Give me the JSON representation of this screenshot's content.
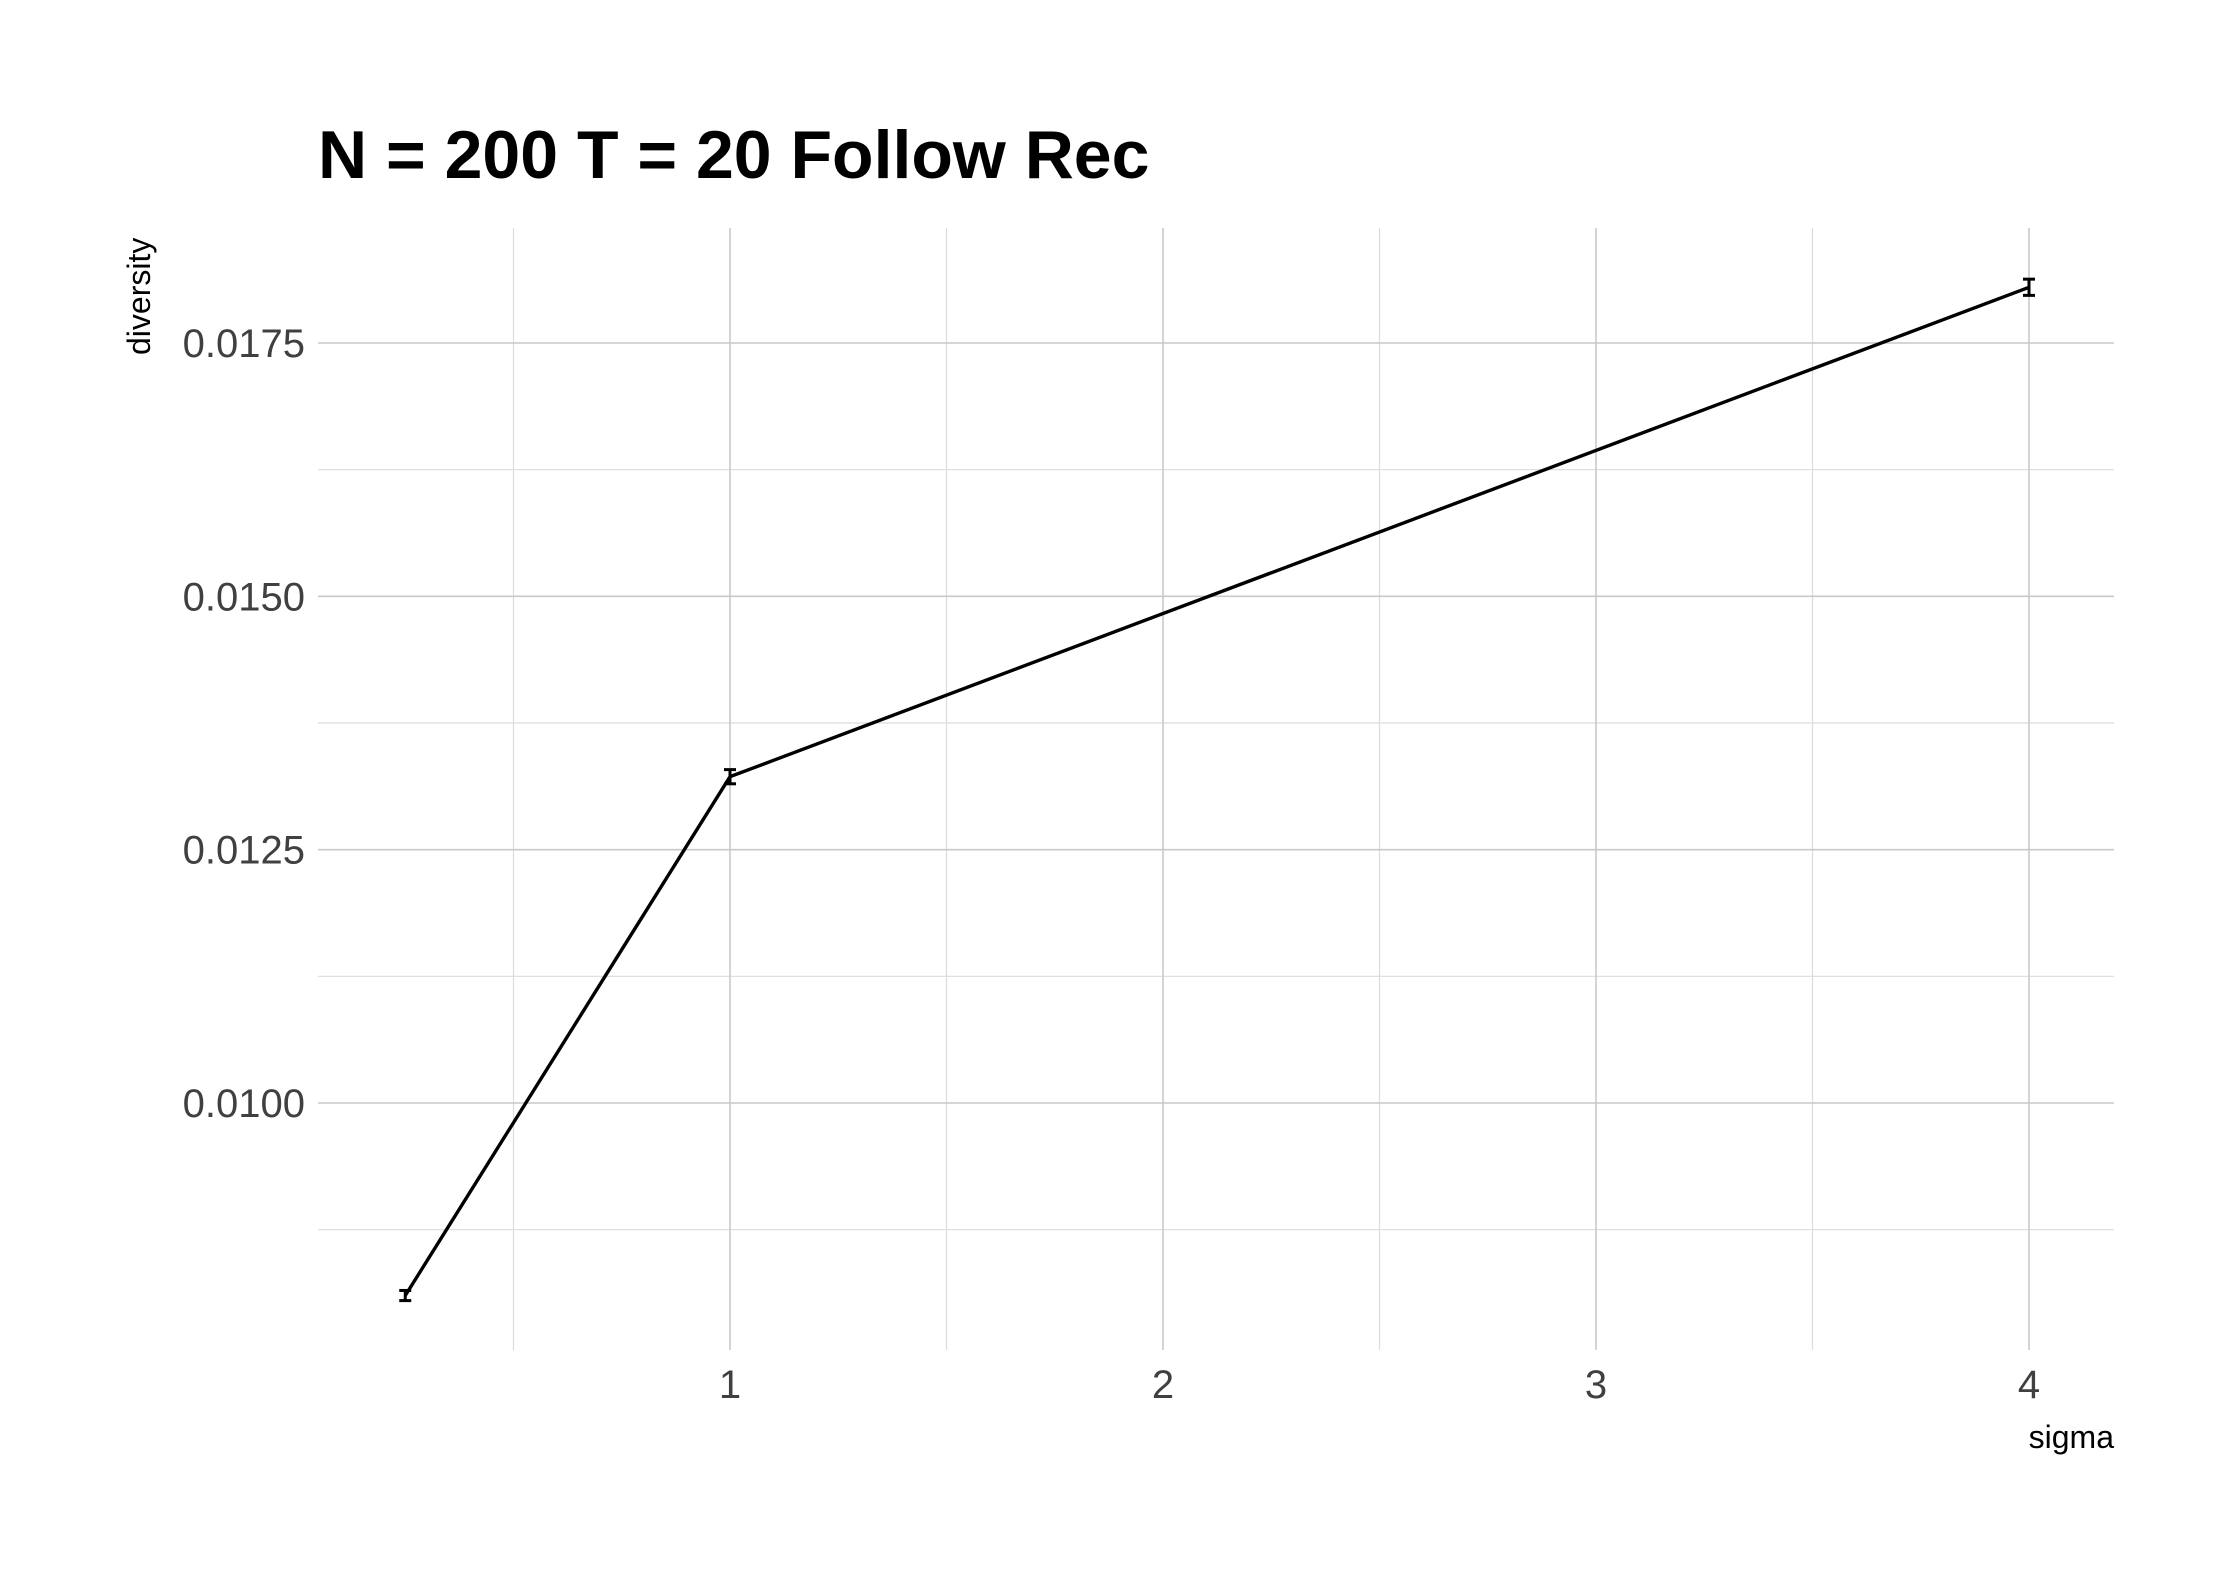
{
  "chart_data": {
    "type": "line",
    "title": "N = 200 T = 20 Follow Rec",
    "xlabel": "sigma",
    "ylabel": "diversity",
    "xlim": [
      0.25,
      4.2
    ],
    "ylim": [
      0.0077,
      0.0187
    ],
    "x_ticks": [
      1,
      2,
      3,
      4
    ],
    "x_tick_labels": [
      "1",
      "2",
      "3",
      "4"
    ],
    "x_minor_ticks": [
      0.5,
      1.5,
      2.5,
      3.5
    ],
    "y_ticks": [
      0.01,
      0.0125,
      0.015,
      0.0175
    ],
    "y_tick_labels": [
      "0.0100",
      "0.0125",
      "0.0150",
      "0.0175"
    ],
    "y_minor_ticks": [
      0.00875,
      0.01125,
      0.01375,
      0.01625
    ],
    "grid": true,
    "legend": "none",
    "series": [
      {
        "color": "#000000",
        "x": [
          0.25,
          1,
          4
        ],
        "y": [
          0.0081,
          0.01322,
          0.01805
        ],
        "err_low": [
          0.00805,
          0.01315,
          0.01797
        ],
        "err_high": [
          0.00815,
          0.01329,
          0.01813
        ]
      }
    ]
  }
}
